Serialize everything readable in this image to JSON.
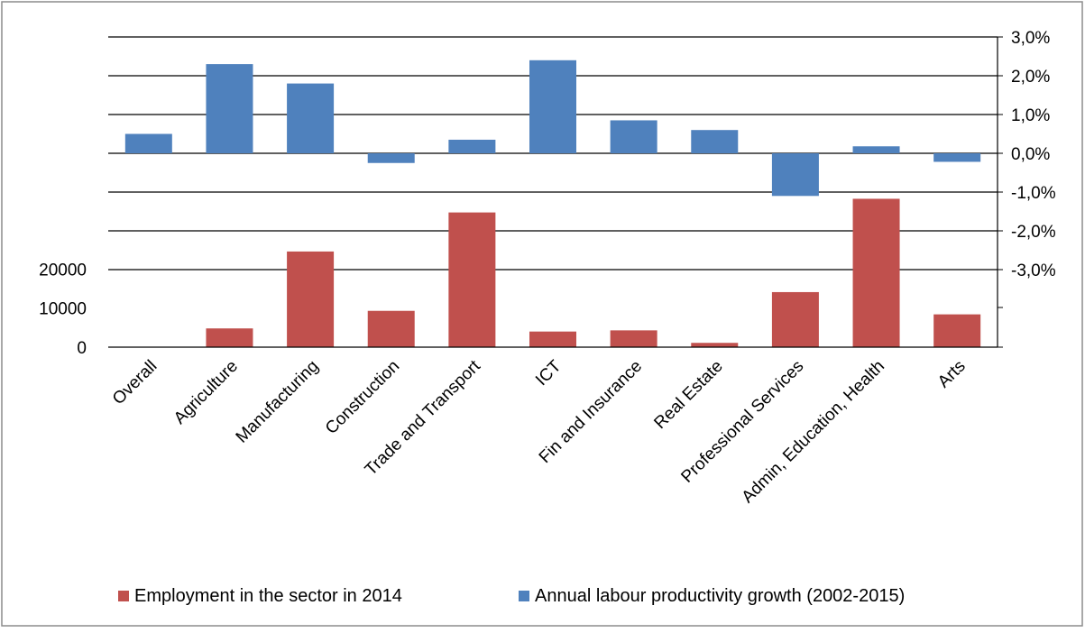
{
  "chart_data": {
    "type": "bar",
    "categories": [
      "Overall",
      "Agriculture",
      "Manufacturing",
      "Construction",
      "Trade and Transport",
      "ICT",
      "Fin and Insurance",
      "Real Estate",
      "Professional Services",
      "Admin, Education, Health",
      "Arts"
    ],
    "series": [
      {
        "name": "Employment in the sector in 2014",
        "axis": "left",
        "color": "#c0504d",
        "values": [
          0,
          4800,
          24500,
          9300,
          34500,
          4000,
          4300,
          1100,
          14100,
          38000,
          8400
        ]
      },
      {
        "name": "Annual labour productivity growth (2002-2015)",
        "axis": "right",
        "color": "#4f81bd",
        "values": [
          0.005,
          0.023,
          0.018,
          -0.0025,
          0.0035,
          0.024,
          0.0085,
          0.006,
          -0.011,
          0.0018,
          -0.0022
        ]
      }
    ],
    "left_axis": {
      "ticks": [
        "0",
        "10000",
        "20000"
      ],
      "tick_values": [
        0,
        10000,
        20000
      ]
    },
    "right_axis": {
      "ticks": [
        "3,0%",
        "2,0%",
        "1,0%",
        "0,0%",
        "-1,0%",
        "-2,0%",
        "-3,0%"
      ],
      "tick_values": [
        0.03,
        0.02,
        0.01,
        0.0,
        -0.01,
        -0.02,
        -0.03
      ]
    },
    "legend": {
      "position": "bottom",
      "entries": [
        "Employment in the sector in 2014",
        "Annual labour productivity growth (2002-2015)"
      ]
    },
    "grid": true
  }
}
